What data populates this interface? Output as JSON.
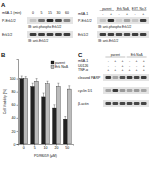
{
  "panel_labels": [
    "A",
    "B",
    "C"
  ],
  "blot_a1": {
    "row_label": "m6A-1 (min)",
    "lanes": [
      "0",
      "5",
      "15",
      "30",
      "60"
    ],
    "bands": [
      {
        "name": "P-Erk1/2",
        "caption": "IB: anti-phospho Erk1/2",
        "signal": [
          0.15,
          0.55,
          0.9,
          0.75,
          0.45
        ]
      },
      {
        "name": "Erk1/2",
        "caption": "IB: anti-Erk1/2",
        "signal": [
          0.8,
          0.8,
          0.8,
          0.8,
          0.8
        ]
      }
    ]
  },
  "blot_a2": {
    "groups": [
      "parent",
      "Erk NoΔ",
      "EXT. No.X"
    ],
    "rows": [
      {
        "label": "m6A-1",
        "marks": [
          "-",
          "+",
          "-",
          "+",
          "-",
          "+"
        ]
      }
    ],
    "bands": [
      {
        "name": "P-Erk1/2",
        "caption": "IB: anti-phospho Erk1/2",
        "signal": [
          0.15,
          0.85,
          0.1,
          0.3,
          0.15,
          0.8
        ]
      },
      {
        "name": "Erk1/2",
        "caption": "IB: anti-Erk1/2",
        "signal": [
          0.8,
          0.8,
          0.75,
          0.75,
          0.8,
          0.8
        ]
      }
    ]
  },
  "blot_c": {
    "groups": [
      "parent",
      "Erk NoΔ"
    ],
    "rows": [
      {
        "label": "m6A-1",
        "marks": [
          "-",
          "+",
          "+",
          "-",
          "+",
          "+"
        ]
      },
      {
        "label": "U0126",
        "marks": [
          "-",
          "-",
          "+",
          "-",
          "-",
          "+"
        ]
      },
      {
        "label": "TNF-α",
        "marks": [
          "+",
          "+",
          "+",
          "+",
          "+",
          "+"
        ]
      }
    ],
    "bands": [
      {
        "name": "cleaved PARP",
        "signal": [
          0.8,
          0.3,
          0.7,
          0.8,
          0.75,
          0.8
        ]
      },
      {
        "name": "cyclin D1",
        "signal": [
          0.3,
          0.8,
          0.35,
          0.3,
          0.35,
          0.3
        ]
      },
      {
        "name": "β-actin",
        "signal": [
          0.75,
          0.75,
          0.75,
          0.75,
          0.75,
          0.75
        ]
      }
    ]
  },
  "chart_data": {
    "type": "bar",
    "y_label": "Cell Viability (%)",
    "x_label": "PD98059 (μM)",
    "categories": [
      "0",
      "5",
      "10",
      "20",
      "50"
    ],
    "series": [
      {
        "name": "parent",
        "color": "#222222",
        "values": [
          100,
          88,
          72,
          55,
          38
        ],
        "errors": [
          4,
          5,
          6,
          5,
          4
        ]
      },
      {
        "name": "Erk NoΔ",
        "color": "#bbbbbb",
        "values": [
          100,
          96,
          92,
          88,
          84
        ],
        "errors": [
          3,
          4,
          4,
          5,
          5
        ]
      }
    ],
    "ylim": [
      0,
      130
    ],
    "yticks": [
      0,
      20,
      40,
      60,
      80,
      100
    ],
    "legend": "top-right"
  }
}
